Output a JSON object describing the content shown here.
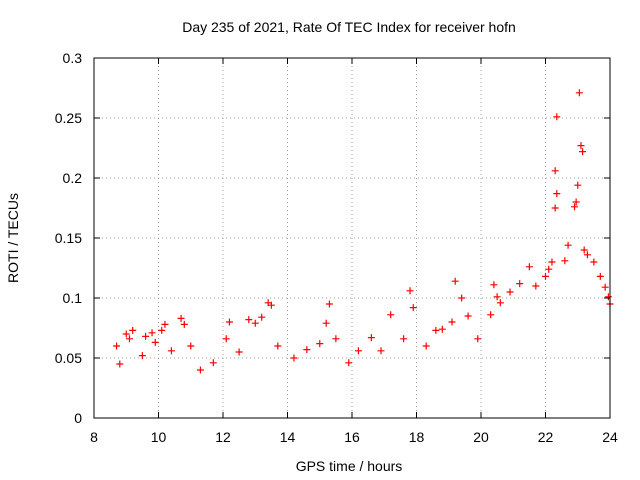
{
  "chart_data": {
    "type": "scatter",
    "title": "Day 235 of 2021, Rate Of TEC Index for receiver hofn",
    "xlabel": "GPS time / hours",
    "ylabel": "ROTI / TECUs",
    "xlim": [
      8,
      24
    ],
    "ylim": [
      0,
      0.3
    ],
    "xticks": [
      "8",
      "10",
      "12",
      "14",
      "16",
      "18",
      "20",
      "22",
      "24"
    ],
    "yticks": [
      "0",
      "0.05",
      "0.1",
      "0.15",
      "0.2",
      "0.25",
      "0.3"
    ],
    "grid": true,
    "marker": "plus",
    "color": "#ff0000",
    "series": [
      {
        "points": [
          [
            8.7,
            0.06
          ],
          [
            8.8,
            0.045
          ],
          [
            9.0,
            0.07
          ],
          [
            9.1,
            0.066
          ],
          [
            9.2,
            0.073
          ],
          [
            9.5,
            0.052
          ],
          [
            9.6,
            0.068
          ],
          [
            9.8,
            0.071
          ],
          [
            9.9,
            0.063
          ],
          [
            10.1,
            0.073
          ],
          [
            10.2,
            0.078
          ],
          [
            10.4,
            0.056
          ],
          [
            10.7,
            0.083
          ],
          [
            10.8,
            0.078
          ],
          [
            11.0,
            0.06
          ],
          [
            11.3,
            0.04
          ],
          [
            11.7,
            0.046
          ],
          [
            12.1,
            0.066
          ],
          [
            12.2,
            0.08
          ],
          [
            12.5,
            0.055
          ],
          [
            12.8,
            0.082
          ],
          [
            13.0,
            0.079
          ],
          [
            13.2,
            0.084
          ],
          [
            13.4,
            0.096
          ],
          [
            13.5,
            0.094
          ],
          [
            13.7,
            0.06
          ],
          [
            14.2,
            0.05
          ],
          [
            14.6,
            0.057
          ],
          [
            15.0,
            0.062
          ],
          [
            15.2,
            0.079
          ],
          [
            15.3,
            0.095
          ],
          [
            15.5,
            0.066
          ],
          [
            15.9,
            0.046
          ],
          [
            16.2,
            0.056
          ],
          [
            16.6,
            0.067
          ],
          [
            16.9,
            0.056
          ],
          [
            17.2,
            0.086
          ],
          [
            17.6,
            0.066
          ],
          [
            17.8,
            0.106
          ],
          [
            17.9,
            0.092
          ],
          [
            18.3,
            0.06
          ],
          [
            18.6,
            0.073
          ],
          [
            18.8,
            0.074
          ],
          [
            19.1,
            0.08
          ],
          [
            19.2,
            0.114
          ],
          [
            19.4,
            0.1
          ],
          [
            19.6,
            0.085
          ],
          [
            19.9,
            0.066
          ],
          [
            20.3,
            0.086
          ],
          [
            20.4,
            0.111
          ],
          [
            20.5,
            0.101
          ],
          [
            20.6,
            0.096
          ],
          [
            20.9,
            0.105
          ],
          [
            21.2,
            0.112
          ],
          [
            21.5,
            0.126
          ],
          [
            21.7,
            0.11
          ],
          [
            22.0,
            0.118
          ],
          [
            22.1,
            0.124
          ],
          [
            22.2,
            0.13
          ],
          [
            22.3,
            0.206
          ],
          [
            22.3,
            0.175
          ],
          [
            22.35,
            0.187
          ],
          [
            22.35,
            0.251
          ],
          [
            22.6,
            0.131
          ],
          [
            22.7,
            0.144
          ],
          [
            22.9,
            0.176
          ],
          [
            22.95,
            0.18
          ],
          [
            23.0,
            0.194
          ],
          [
            23.05,
            0.271
          ],
          [
            23.1,
            0.227
          ],
          [
            23.15,
            0.222
          ],
          [
            23.2,
            0.14
          ],
          [
            23.3,
            0.136
          ],
          [
            23.5,
            0.13
          ],
          [
            23.7,
            0.118
          ],
          [
            23.85,
            0.109
          ],
          [
            23.95,
            0.101
          ],
          [
            24.0,
            0.095
          ]
        ]
      }
    ]
  }
}
